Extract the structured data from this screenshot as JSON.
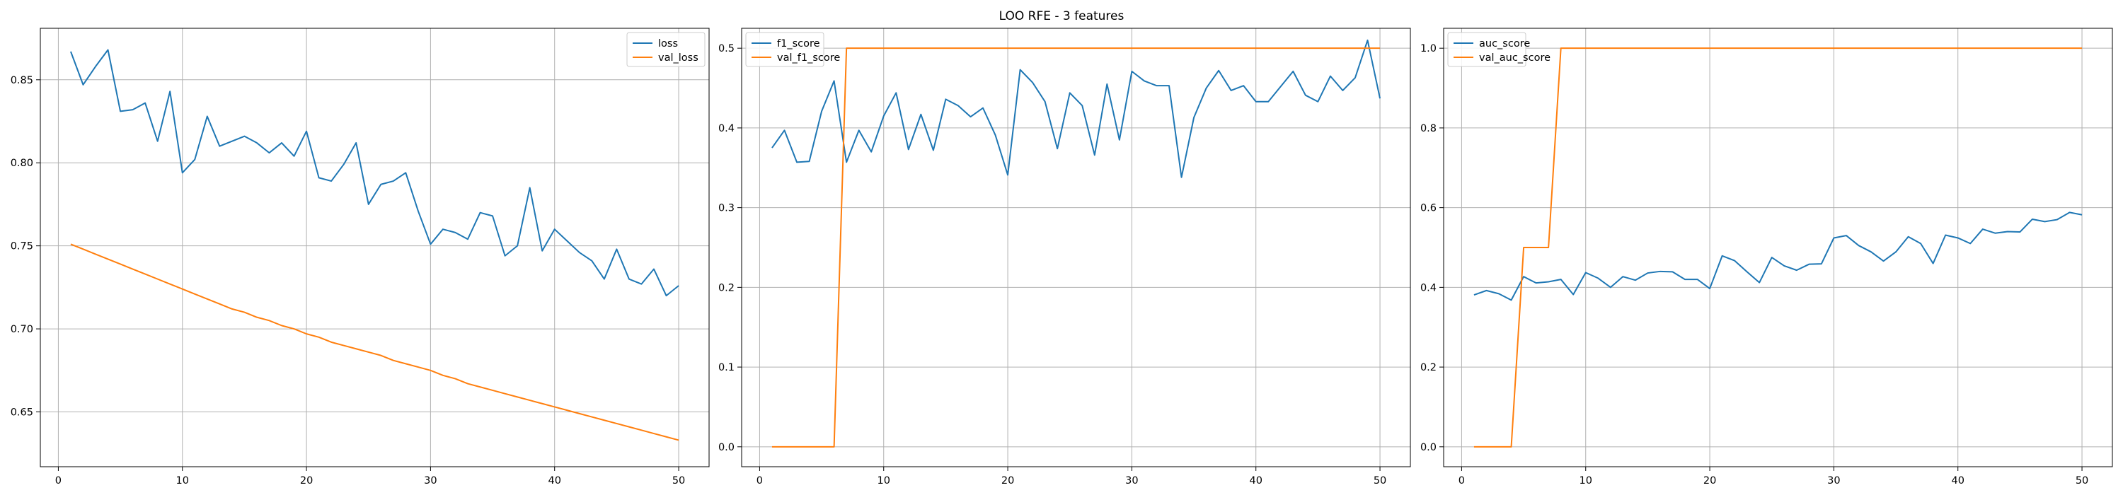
{
  "figure": {
    "suptitle": "LOO RFE - 3 features"
  },
  "colors": {
    "series1": "#1f77b4",
    "series2": "#ff7f0e",
    "grid": "#b0b0b0",
    "axes": "#000000",
    "legend_border": "#cccccc"
  },
  "chart_data": [
    {
      "type": "line",
      "title": "",
      "xlabel": "",
      "ylabel": "",
      "grid": true,
      "legend_position": "upper-right",
      "xlim": [
        -1.45,
        52.45
      ],
      "ylim": [
        0.617,
        0.881
      ],
      "xticks": [
        0,
        10,
        20,
        30,
        40,
        50
      ],
      "xtick_labels": [
        "0",
        "10",
        "20",
        "30",
        "40",
        "50"
      ],
      "yticks": [
        0.65,
        0.7,
        0.75,
        0.8,
        0.85
      ],
      "ytick_labels": [
        "0.65",
        "0.70",
        "0.75",
        "0.80",
        "0.85"
      ],
      "x": [
        1,
        2,
        3,
        4,
        5,
        6,
        7,
        8,
        9,
        10,
        11,
        12,
        13,
        14,
        15,
        16,
        17,
        18,
        19,
        20,
        21,
        22,
        23,
        24,
        25,
        26,
        27,
        28,
        29,
        30,
        31,
        32,
        33,
        34,
        35,
        36,
        37,
        38,
        39,
        40,
        41,
        42,
        43,
        44,
        45,
        46,
        47,
        48,
        49,
        50
      ],
      "series": [
        {
          "name": "loss",
          "values": [
            0.867,
            0.847,
            0.858,
            0.868,
            0.831,
            0.832,
            0.836,
            0.813,
            0.843,
            0.794,
            0.802,
            0.828,
            0.81,
            0.813,
            0.816,
            0.812,
            0.806,
            0.812,
            0.804,
            0.819,
            0.791,
            0.789,
            0.799,
            0.812,
            0.775,
            0.787,
            0.789,
            0.794,
            0.771,
            0.751,
            0.76,
            0.758,
            0.754,
            0.77,
            0.768,
            0.744,
            0.75,
            0.785,
            0.747,
            0.76,
            0.753,
            0.746,
            0.741,
            0.73,
            0.748,
            0.73,
            0.727,
            0.736,
            0.72,
            0.726
          ]
        },
        {
          "name": "val_loss",
          "values": [
            0.751,
            0.748,
            0.745,
            0.742,
            0.739,
            0.736,
            0.733,
            0.73,
            0.727,
            0.724,
            0.721,
            0.718,
            0.715,
            0.712,
            0.71,
            0.707,
            0.705,
            0.702,
            0.7,
            0.697,
            0.695,
            0.692,
            0.69,
            0.688,
            0.686,
            0.684,
            0.681,
            0.679,
            0.677,
            0.675,
            0.672,
            0.67,
            0.667,
            0.665,
            0.663,
            0.661,
            0.659,
            0.657,
            0.655,
            0.653,
            0.651,
            0.649,
            0.647,
            0.645,
            0.643,
            0.641,
            0.639,
            0.637,
            0.635,
            0.633
          ]
        }
      ]
    },
    {
      "type": "line",
      "title": "",
      "xlabel": "",
      "ylabel": "",
      "grid": true,
      "legend_position": "upper-left",
      "xlim": [
        -1.45,
        52.45
      ],
      "ylim": [
        -0.025,
        0.525
      ],
      "xticks": [
        0,
        10,
        20,
        30,
        40,
        50
      ],
      "xtick_labels": [
        "0",
        "10",
        "20",
        "30",
        "40",
        "50"
      ],
      "yticks": [
        0.0,
        0.1,
        0.2,
        0.3,
        0.4,
        0.5
      ],
      "ytick_labels": [
        "0.0",
        "0.1",
        "0.2",
        "0.3",
        "0.4",
        "0.5"
      ],
      "x": [
        1,
        2,
        3,
        4,
        5,
        6,
        7,
        8,
        9,
        10,
        11,
        12,
        13,
        14,
        15,
        16,
        17,
        18,
        19,
        20,
        21,
        22,
        23,
        24,
        25,
        26,
        27,
        28,
        29,
        30,
        31,
        32,
        33,
        34,
        35,
        36,
        37,
        38,
        39,
        40,
        41,
        42,
        43,
        44,
        45,
        46,
        47,
        48,
        49,
        50
      ],
      "series": [
        {
          "name": "f1_score",
          "values": [
            0.375,
            0.397,
            0.357,
            0.358,
            0.421,
            0.459,
            0.357,
            0.397,
            0.37,
            0.415,
            0.444,
            0.373,
            0.417,
            0.372,
            0.436,
            0.428,
            0.414,
            0.425,
            0.391,
            0.341,
            0.473,
            0.457,
            0.433,
            0.374,
            0.444,
            0.428,
            0.366,
            0.455,
            0.385,
            0.471,
            0.459,
            0.453,
            0.453,
            0.338,
            0.413,
            0.45,
            0.472,
            0.447,
            0.453,
            0.433,
            0.433,
            0.452,
            0.471,
            0.441,
            0.433,
            0.465,
            0.447,
            0.463,
            0.51,
            0.437
          ]
        },
        {
          "name": "val_f1_score",
          "values": [
            0.0,
            0.0,
            0.0,
            0.0,
            0.0,
            0.0,
            0.5,
            0.5,
            0.5,
            0.5,
            0.5,
            0.5,
            0.5,
            0.5,
            0.5,
            0.5,
            0.5,
            0.5,
            0.5,
            0.5,
            0.5,
            0.5,
            0.5,
            0.5,
            0.5,
            0.5,
            0.5,
            0.5,
            0.5,
            0.5,
            0.5,
            0.5,
            0.5,
            0.5,
            0.5,
            0.5,
            0.5,
            0.5,
            0.5,
            0.5,
            0.5,
            0.5,
            0.5,
            0.5,
            0.5,
            0.5,
            0.5,
            0.5,
            0.5,
            0.5
          ]
        }
      ]
    },
    {
      "type": "line",
      "title": "",
      "xlabel": "",
      "ylabel": "",
      "grid": true,
      "legend_position": "upper-left",
      "xlim": [
        -1.45,
        52.45
      ],
      "ylim": [
        -0.05,
        1.05
      ],
      "xticks": [
        0,
        10,
        20,
        30,
        40,
        50
      ],
      "xtick_labels": [
        "0",
        "10",
        "20",
        "30",
        "40",
        "50"
      ],
      "yticks": [
        0.0,
        0.2,
        0.4,
        0.6,
        0.8,
        1.0
      ],
      "ytick_labels": [
        "0.0",
        "0.2",
        "0.4",
        "0.6",
        "0.8",
        "1.0"
      ],
      "x": [
        1,
        2,
        3,
        4,
        5,
        6,
        7,
        8,
        9,
        10,
        11,
        12,
        13,
        14,
        15,
        16,
        17,
        18,
        19,
        20,
        21,
        22,
        23,
        24,
        25,
        26,
        27,
        28,
        29,
        30,
        31,
        32,
        33,
        34,
        35,
        36,
        37,
        38,
        39,
        40,
        41,
        42,
        43,
        44,
        45,
        46,
        47,
        48,
        49,
        50
      ],
      "series": [
        {
          "name": "auc_score",
          "values": [
            0.381,
            0.392,
            0.384,
            0.368,
            0.427,
            0.411,
            0.414,
            0.42,
            0.382,
            0.437,
            0.423,
            0.4,
            0.427,
            0.418,
            0.436,
            0.44,
            0.439,
            0.42,
            0.42,
            0.397,
            0.479,
            0.467,
            0.439,
            0.412,
            0.475,
            0.454,
            0.443,
            0.458,
            0.459,
            0.524,
            0.53,
            0.505,
            0.489,
            0.466,
            0.489,
            0.527,
            0.51,
            0.46,
            0.531,
            0.524,
            0.51,
            0.546,
            0.536,
            0.54,
            0.539,
            0.571,
            0.565,
            0.57,
            0.588,
            0.582
          ]
        },
        {
          "name": "val_auc_score",
          "values": [
            0.0,
            0.0,
            0.0,
            0.0,
            0.5,
            0.5,
            0.5,
            1.0,
            1.0,
            1.0,
            1.0,
            1.0,
            1.0,
            1.0,
            1.0,
            1.0,
            1.0,
            1.0,
            1.0,
            1.0,
            1.0,
            1.0,
            1.0,
            1.0,
            1.0,
            1.0,
            1.0,
            1.0,
            1.0,
            1.0,
            1.0,
            1.0,
            1.0,
            1.0,
            1.0,
            1.0,
            1.0,
            1.0,
            1.0,
            1.0,
            1.0,
            1.0,
            1.0,
            1.0,
            1.0,
            1.0,
            1.0,
            1.0,
            1.0,
            1.0
          ]
        }
      ]
    }
  ]
}
